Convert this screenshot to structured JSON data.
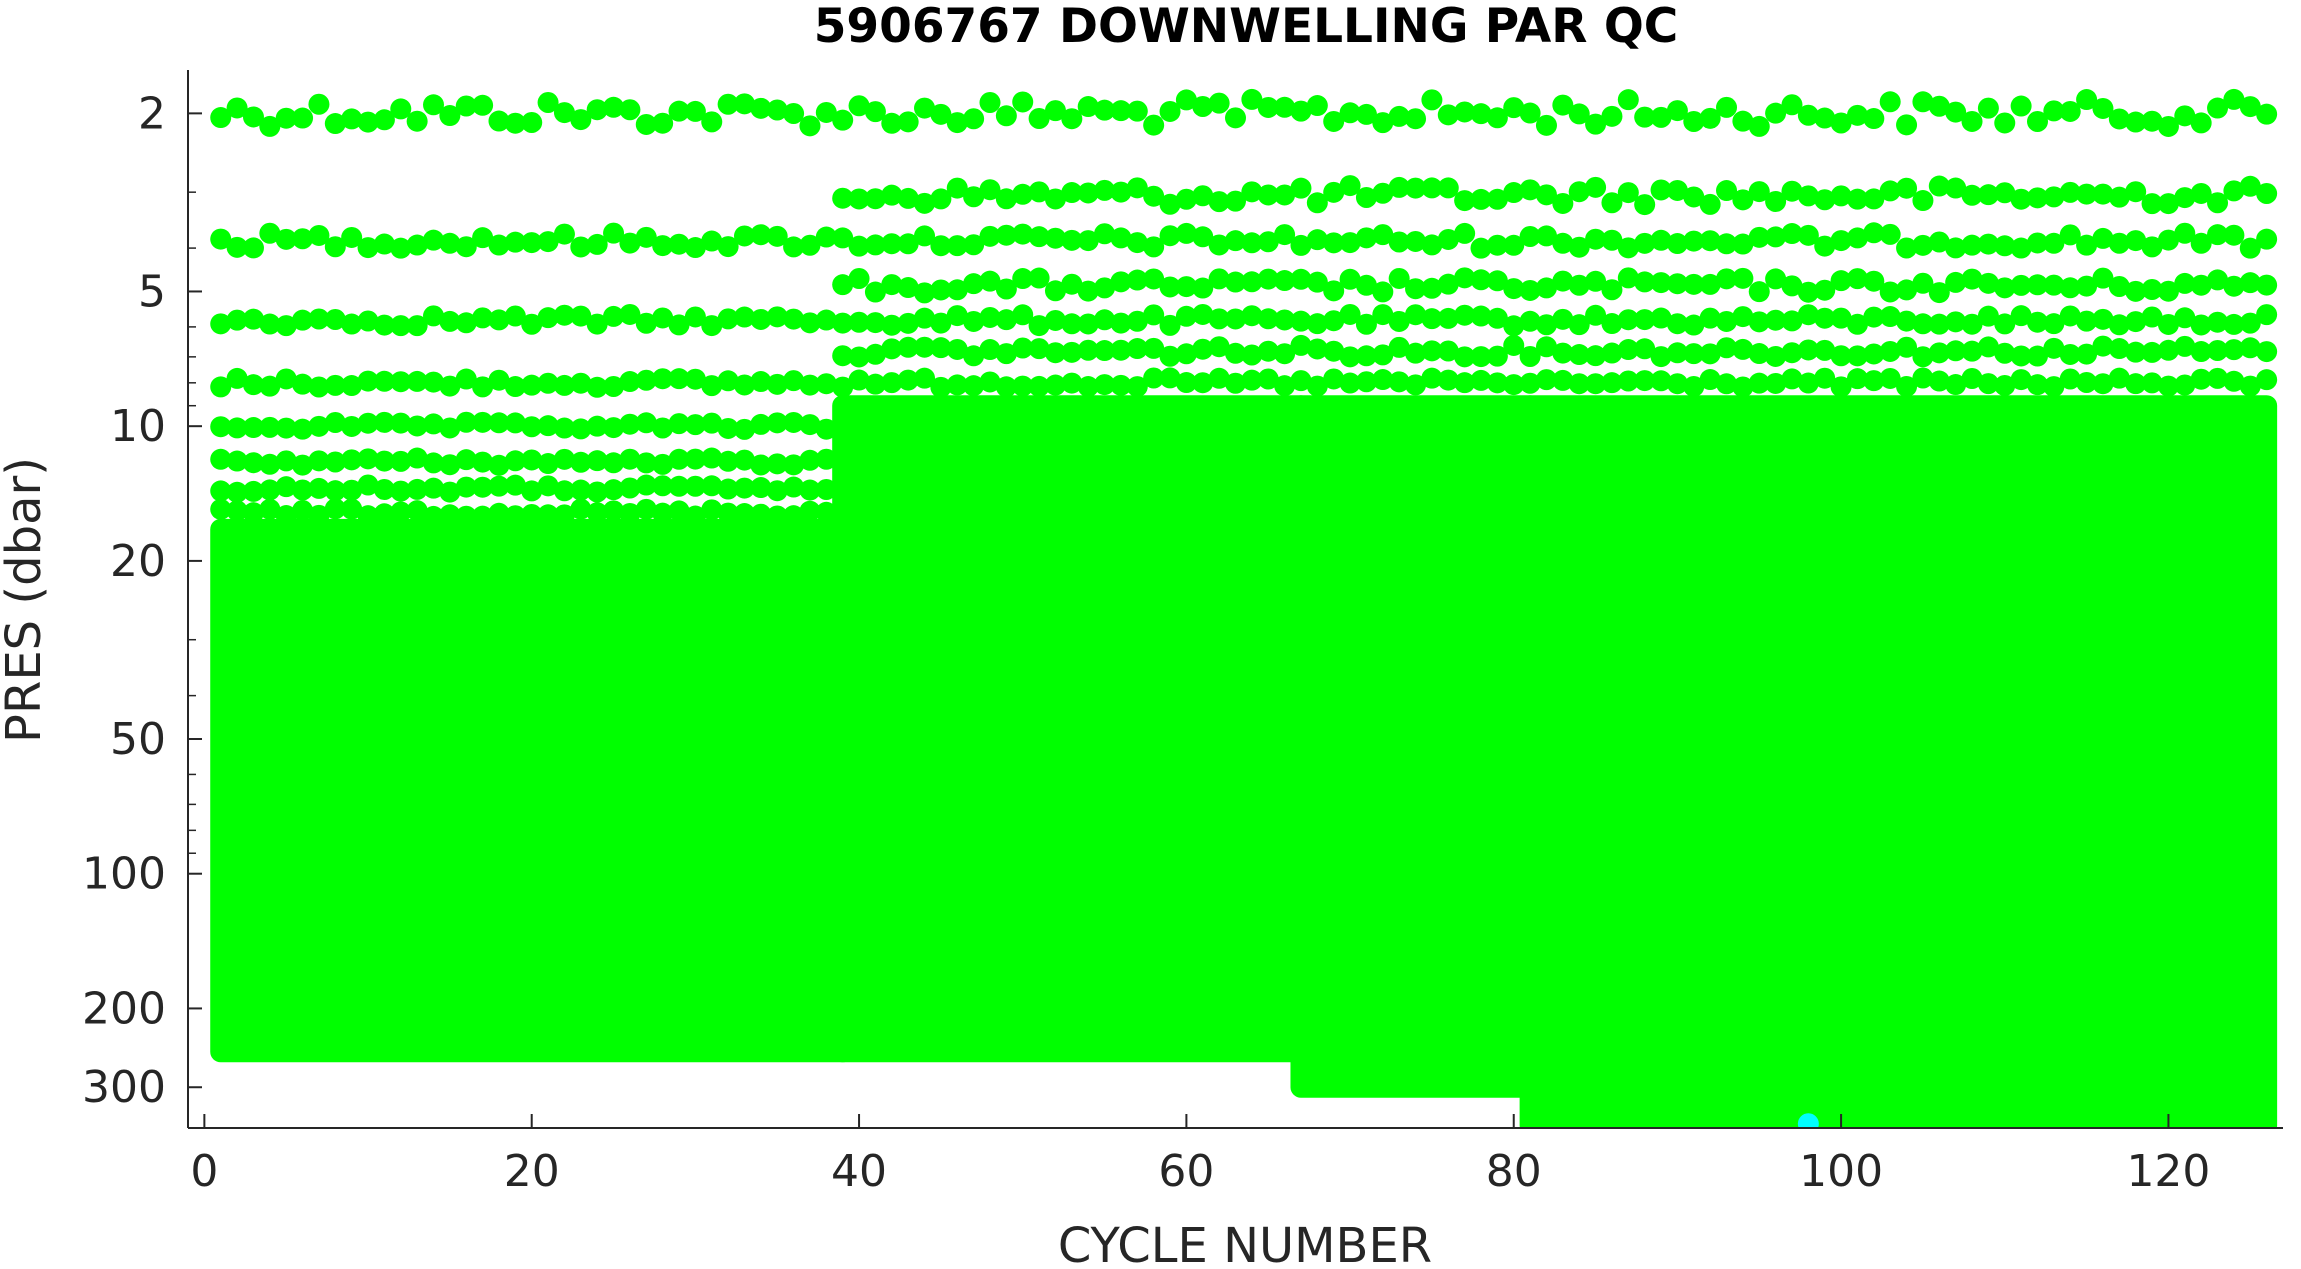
{
  "chart_data": {
    "type": "scatter",
    "title": "5906767  DOWNWELLING PAR QC",
    "xlabel": "CYCLE NUMBER",
    "ylabel": "PRES (dbar)",
    "x_scale": "linear",
    "y_scale": "log",
    "y_reversed": true,
    "xlim": [
      -1,
      127
    ],
    "ylim": [
      1.6,
      370
    ],
    "xticks": [
      0,
      20,
      40,
      60,
      80,
      100,
      120
    ],
    "xtick_labels": [
      "0",
      "20",
      "40",
      "60",
      "80",
      "100",
      "120"
    ],
    "yticks": [
      2,
      5,
      10,
      20,
      50,
      100,
      200,
      300
    ],
    "ytick_labels": [
      "2",
      "5",
      "10",
      "20",
      "50",
      "100",
      "200",
      "300"
    ],
    "y_minor_ticks": [
      3,
      4,
      6,
      7,
      8,
      9,
      30,
      40,
      60,
      70,
      80,
      90
    ],
    "grid": false,
    "legend": "none",
    "colors": {
      "qc_good": "#00ff00",
      "qc_other": "#00ffff",
      "axis": "#262626"
    },
    "series": [
      {
        "color": "qc_good",
        "dense_blocks": [
          {
            "x_range": [
              1,
              39
            ],
            "p_range": [
              17,
              250
            ]
          },
          {
            "x_range": [
              39,
              67
            ],
            "p_range": [
              9,
              250
            ]
          },
          {
            "x_range": [
              67,
              81
            ],
            "p_range": [
              9,
              300
            ]
          },
          {
            "x_range": [
              81,
              126
            ],
            "p_range": [
              9,
              365
            ]
          }
        ],
        "level_rows": [
          {
            "x_range": [
              1,
              126
            ],
            "p": 2.0,
            "jitter": 0.07
          },
          {
            "x_range": [
              39,
              126
            ],
            "p": 3.05,
            "jitter": 0.05
          },
          {
            "x_range": [
              1,
              126
            ],
            "p": 3.85,
            "jitter": 0.04
          },
          {
            "x_range": [
              39,
              126
            ],
            "p": 4.85,
            "jitter": 0.04
          },
          {
            "x_range": [
              1,
              126
            ],
            "p": 5.8,
            "jitter": 0.03
          },
          {
            "x_range": [
              39,
              126
            ],
            "p": 6.8,
            "jitter": 0.03
          },
          {
            "x_range": [
              1,
              126
            ],
            "p": 8.0,
            "jitter": 0.025
          },
          {
            "x_range": [
              1,
              39
            ],
            "p": 10.0,
            "jitter": 0.02
          },
          {
            "x_range": [
              1,
              39
            ],
            "p": 12.0,
            "jitter": 0.02
          },
          {
            "x_range": [
              1,
              39
            ],
            "p": 13.8,
            "jitter": 0.02
          },
          {
            "x_range": [
              1,
              39
            ],
            "p": 15.6,
            "jitter": 0.02
          }
        ]
      },
      {
        "color": "qc_other",
        "points": [
          {
            "x": 98,
            "p": 362
          }
        ]
      }
    ]
  }
}
